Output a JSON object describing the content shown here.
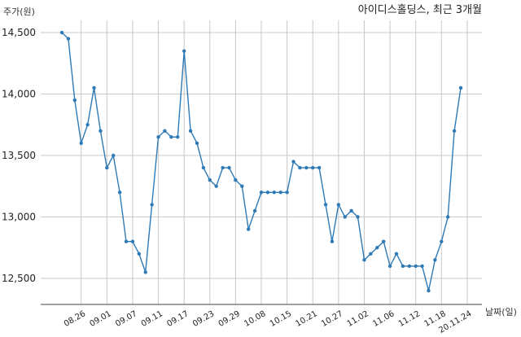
{
  "chart_data": {
    "type": "line",
    "title": "아이디스홀딩스, 최근 3개월",
    "ylabel": "주가(원)",
    "xlabel": "날짜(일)",
    "ylim": [
      12250,
      14650
    ],
    "yticks": [
      12500,
      13000,
      13500,
      14000,
      14500
    ],
    "ytick_labels": [
      "12,500",
      "13,000",
      "13,500",
      "14,000",
      "14,500"
    ],
    "xtick_labels": [
      "08.26",
      "09.01",
      "09.07",
      "09.11",
      "09.17",
      "09.23",
      "09.29",
      "10.08",
      "10.15",
      "10.21",
      "10.27",
      "11.02",
      "11.06",
      "11.12",
      "11.18",
      "20.11.24"
    ],
    "xtick_index": [
      3,
      7,
      11,
      15,
      19,
      23,
      27,
      31,
      35,
      39,
      43,
      47,
      51,
      55,
      59,
      63
    ],
    "line_color": "#2e7ab6",
    "grid": true,
    "series": [
      {
        "values": [
          14500,
          14450,
          13950,
          13600,
          13750,
          14050,
          13700,
          13400,
          13500,
          13200,
          12800,
          12800,
          12700,
          12550,
          13100,
          13650,
          13700,
          13650,
          13650,
          14350,
          13700,
          13600,
          13400,
          13300,
          13250,
          13400,
          13400,
          13300,
          13250,
          12900,
          13050,
          13200,
          13200,
          13200,
          13200,
          13200,
          13450,
          13400,
          13400,
          13400,
          13400,
          13100,
          12800,
          13100,
          13000,
          13050,
          13000,
          12650,
          12700,
          12750,
          12800,
          12600,
          12700,
          12600,
          12600,
          12600,
          12600,
          12400,
          12650,
          12800,
          13000,
          13700,
          14050
        ]
      }
    ]
  }
}
